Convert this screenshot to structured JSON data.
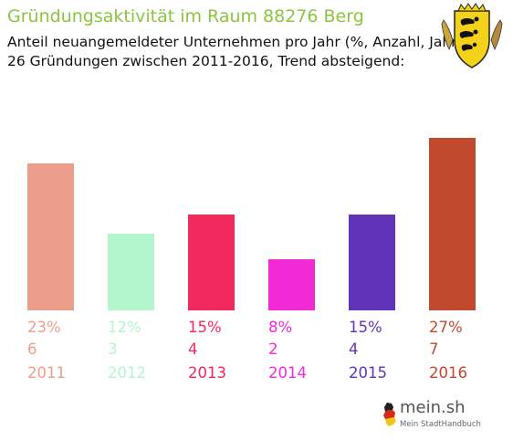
{
  "header": {
    "title": "Gründungsaktivität im Raum 88276 Berg",
    "subtitle_line1": "Anteil neuangemeldeter Unternehmen pro Jahr (%, Anzahl, Jahr)",
    "subtitle_line2": "26 Gründungen zwischen 2011-2016, Trend absteigend:"
  },
  "branding": {
    "logo_text": "mein.sh",
    "logo_subtext": "Mein StadtHandbuch",
    "crest_icon": "baden-wuerttemberg-coat-of-arms-icon",
    "logo_icon": "germany-map-icon"
  },
  "colors": {
    "title": "#8bc53f"
  },
  "chart_data": {
    "type": "bar",
    "title": "Gründungsaktivität im Raum 88276 Berg",
    "categories": [
      "2011",
      "2012",
      "2013",
      "2014",
      "2015",
      "2016"
    ],
    "values": [
      23,
      12,
      15,
      8,
      15,
      27
    ],
    "counts": [
      "6",
      "3",
      "4",
      "2",
      "4",
      "7"
    ],
    "percent_labels": [
      "23%",
      "12%",
      "15%",
      "8%",
      "15%",
      "27%"
    ],
    "colors": [
      "#eb9f8a",
      "#b3f5cd",
      "#f2295c",
      "#f22ad6",
      "#6133b8",
      "#c1492e"
    ],
    "ylim": [
      0,
      27
    ],
    "grid": false,
    "legend": "none",
    "xlabel": "",
    "ylabel": ""
  }
}
